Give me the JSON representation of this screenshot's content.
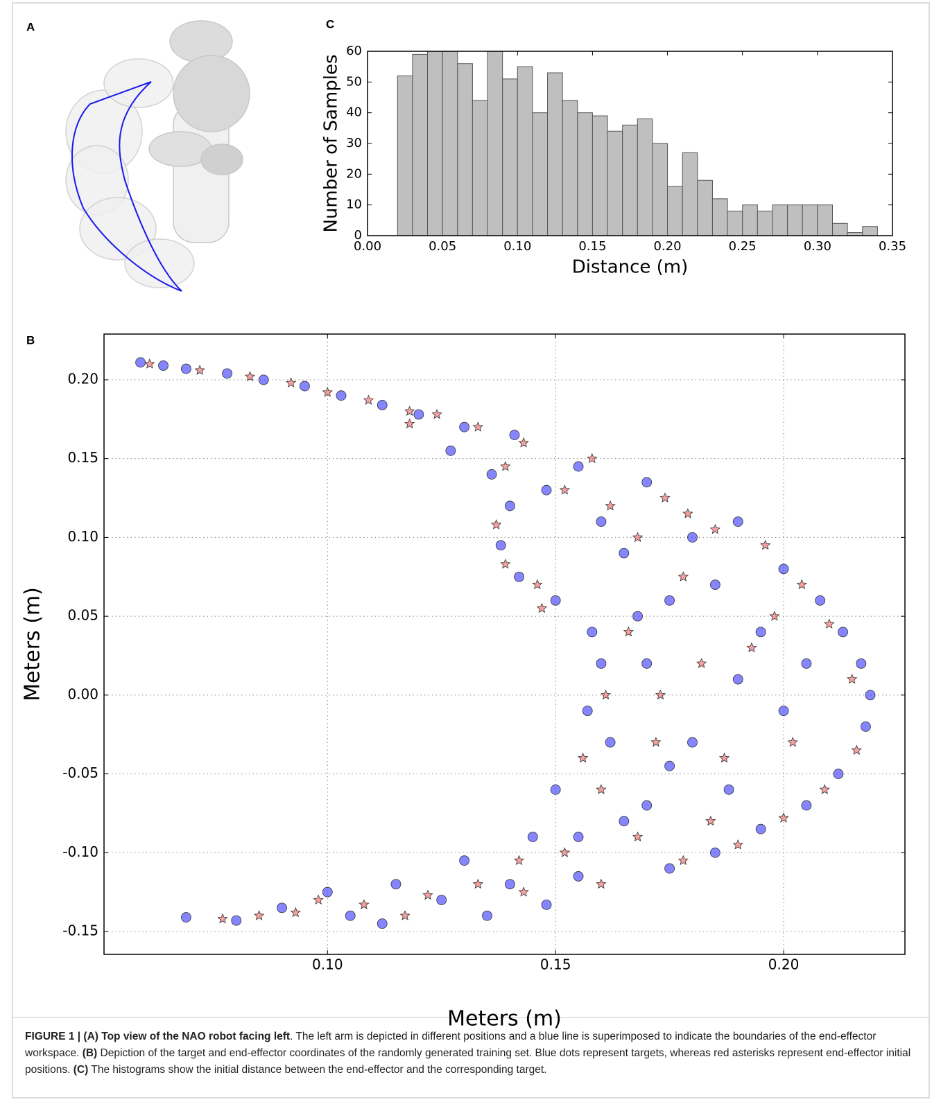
{
  "panel_a": {
    "label": "A"
  },
  "chart_data": [
    {
      "type": "histogram",
      "panel_label": "C",
      "xlabel": "Distance (m)",
      "ylabel": "Number of Samples",
      "color": "#bfbfbf",
      "bins": [
        0.02,
        0.03,
        0.04,
        0.05,
        0.06,
        0.07,
        0.08,
        0.09,
        0.1,
        0.11,
        0.12,
        0.13,
        0.14,
        0.15,
        0.16,
        0.17,
        0.18,
        0.19,
        0.2,
        0.21,
        0.22,
        0.23,
        0.24,
        0.25,
        0.26,
        0.27,
        0.28,
        0.29,
        0.3,
        0.31,
        0.32,
        0.33,
        0.34
      ],
      "values": [
        52,
        59,
        60,
        60,
        56,
        44,
        60,
        51,
        55,
        40,
        53,
        44,
        40,
        39,
        34,
        36,
        38,
        30,
        16,
        27,
        18,
        12,
        8,
        10,
        8,
        10,
        10,
        10,
        10,
        4,
        1,
        3
      ],
      "xlim": [
        0,
        0.35
      ],
      "ylim": [
        0,
        60
      ],
      "xticks": [
        {
          "value": 0,
          "label": "0.00"
        },
        {
          "value": 0.05,
          "label": "0.05"
        },
        {
          "value": 0.1,
          "label": "0.10"
        },
        {
          "value": 0.15,
          "label": "0.15"
        },
        {
          "value": 0.2,
          "label": "0.20"
        },
        {
          "value": 0.25,
          "label": "0.25"
        },
        {
          "value": 0.3,
          "label": "0.30"
        },
        {
          "value": 0.35,
          "label": "0.35"
        }
      ],
      "yticks": [
        0,
        10,
        20,
        30,
        40,
        50,
        60
      ],
      "grid": false
    },
    {
      "type": "scatter",
      "panel_label": "B",
      "xlabel": "Meters (m)",
      "ylabel": "Meters (m)",
      "xlim": [
        0.051,
        0.2266
      ],
      "ylim": [
        -0.1645,
        0.229
      ],
      "xticks": [
        {
          "value": 0.1,
          "label": "0.10"
        },
        {
          "value": 0.15,
          "label": "0.15"
        },
        {
          "value": 0.2,
          "label": "0.20"
        }
      ],
      "yticks": [
        {
          "value": -0.15,
          "label": "-0.15"
        },
        {
          "value": -0.1,
          "label": "-0.10"
        },
        {
          "value": -0.05,
          "label": "-0.05"
        },
        {
          "value": 0,
          "label": "0.00"
        },
        {
          "value": 0.05,
          "label": "0.05"
        },
        {
          "value": 0.1,
          "label": "0.10"
        },
        {
          "value": 0.15,
          "label": "0.15"
        },
        {
          "value": 0.2,
          "label": "0.20"
        }
      ],
      "grid": true,
      "series": [
        {
          "color": "#3333ff",
          "marker": "circle",
          "x": [
            0.059,
            0.064,
            0.069,
            0.078,
            0.086,
            0.095,
            0.103,
            0.112,
            0.12,
            0.127,
            0.13,
            0.136,
            0.141,
            0.14,
            0.138,
            0.142,
            0.15,
            0.148,
            0.155,
            0.16,
            0.165,
            0.17,
            0.158,
            0.16,
            0.157,
            0.162,
            0.175,
            0.18,
            0.19,
            0.2,
            0.208,
            0.213,
            0.217,
            0.219,
            0.218,
            0.212,
            0.205,
            0.195,
            0.185,
            0.175,
            0.17,
            0.18,
            0.19,
            0.2,
            0.195,
            0.185,
            0.17,
            0.165,
            0.15,
            0.145,
            0.14,
            0.13,
            0.125,
            0.115,
            0.105,
            0.1,
            0.09,
            0.08,
            0.069,
            0.148,
            0.155,
            0.175,
            0.205,
            0.168,
            0.188,
            0.155,
            0.135,
            0.112
          ],
          "values": [
            0.211,
            0.209,
            0.207,
            0.204,
            0.2,
            0.196,
            0.19,
            0.184,
            0.178,
            0.155,
            0.17,
            0.14,
            0.165,
            0.12,
            0.095,
            0.075,
            0.06,
            0.13,
            0.145,
            0.11,
            0.09,
            0.135,
            0.04,
            0.02,
            -0.01,
            -0.03,
            0.06,
            0.1,
            0.11,
            0.08,
            0.06,
            0.04,
            0.02,
            0.0,
            -0.02,
            -0.05,
            -0.07,
            -0.085,
            -0.1,
            -0.11,
            -0.07,
            -0.03,
            0.01,
            -0.01,
            0.04,
            0.07,
            0.02,
            -0.08,
            -0.06,
            -0.09,
            -0.12,
            -0.105,
            -0.13,
            -0.12,
            -0.14,
            -0.125,
            -0.135,
            -0.143,
            -0.141,
            -0.133,
            -0.115,
            -0.045,
            0.02,
            0.05,
            -0.06,
            -0.09,
            -0.14,
            -0.145
          ]
        },
        {
          "color": "#f06060",
          "marker": "star",
          "x": [
            0.061,
            0.072,
            0.083,
            0.092,
            0.1,
            0.109,
            0.118,
            0.124,
            0.133,
            0.118,
            0.139,
            0.143,
            0.137,
            0.139,
            0.146,
            0.147,
            0.152,
            0.158,
            0.162,
            0.168,
            0.174,
            0.179,
            0.185,
            0.196,
            0.204,
            0.21,
            0.215,
            0.216,
            0.209,
            0.2,
            0.19,
            0.178,
            0.172,
            0.182,
            0.193,
            0.202,
            0.178,
            0.166,
            0.161,
            0.156,
            0.16,
            0.168,
            0.152,
            0.142,
            0.133,
            0.122,
            0.117,
            0.108,
            0.098,
            0.093,
            0.085,
            0.077,
            0.143,
            0.16,
            0.187,
            0.198,
            0.173,
            0.184
          ],
          "values": [
            0.21,
            0.206,
            0.202,
            0.198,
            0.192,
            0.187,
            0.18,
            0.178,
            0.17,
            0.172,
            0.145,
            0.16,
            0.108,
            0.083,
            0.07,
            0.055,
            0.13,
            0.15,
            0.12,
            0.1,
            0.125,
            0.115,
            0.105,
            0.095,
            0.07,
            0.045,
            0.01,
            -0.035,
            -0.06,
            -0.078,
            -0.095,
            -0.105,
            -0.03,
            0.02,
            0.03,
            -0.03,
            0.075,
            0.04,
            0.0,
            -0.04,
            -0.06,
            -0.09,
            -0.1,
            -0.105,
            -0.12,
            -0.127,
            -0.14,
            -0.133,
            -0.13,
            -0.138,
            -0.14,
            -0.142,
            -0.125,
            -0.12,
            -0.04,
            0.05,
            0.0,
            -0.08
          ]
        }
      ]
    }
  ],
  "caption": [
    {
      "text": "FIGURE 1 | (A) Top view of the NAO robot facing left",
      "bold": true
    },
    {
      "text": ". The left arm is depicted in different positions and a blue line is superimposed to indicate the boundaries of the end-effector workspace. ",
      "bold": false
    },
    {
      "text": "(B)",
      "bold": true
    },
    {
      "text": " Depiction of the target and end-effector coordinates of the randomly generated training set. Blue dots represent targets, whereas red asterisks represent end-effector initial positions. ",
      "bold": false
    },
    {
      "text": "(C)",
      "bold": true
    },
    {
      "text": " The histograms show the initial distance between the end-effector and the corresponding target.",
      "bold": false
    }
  ]
}
